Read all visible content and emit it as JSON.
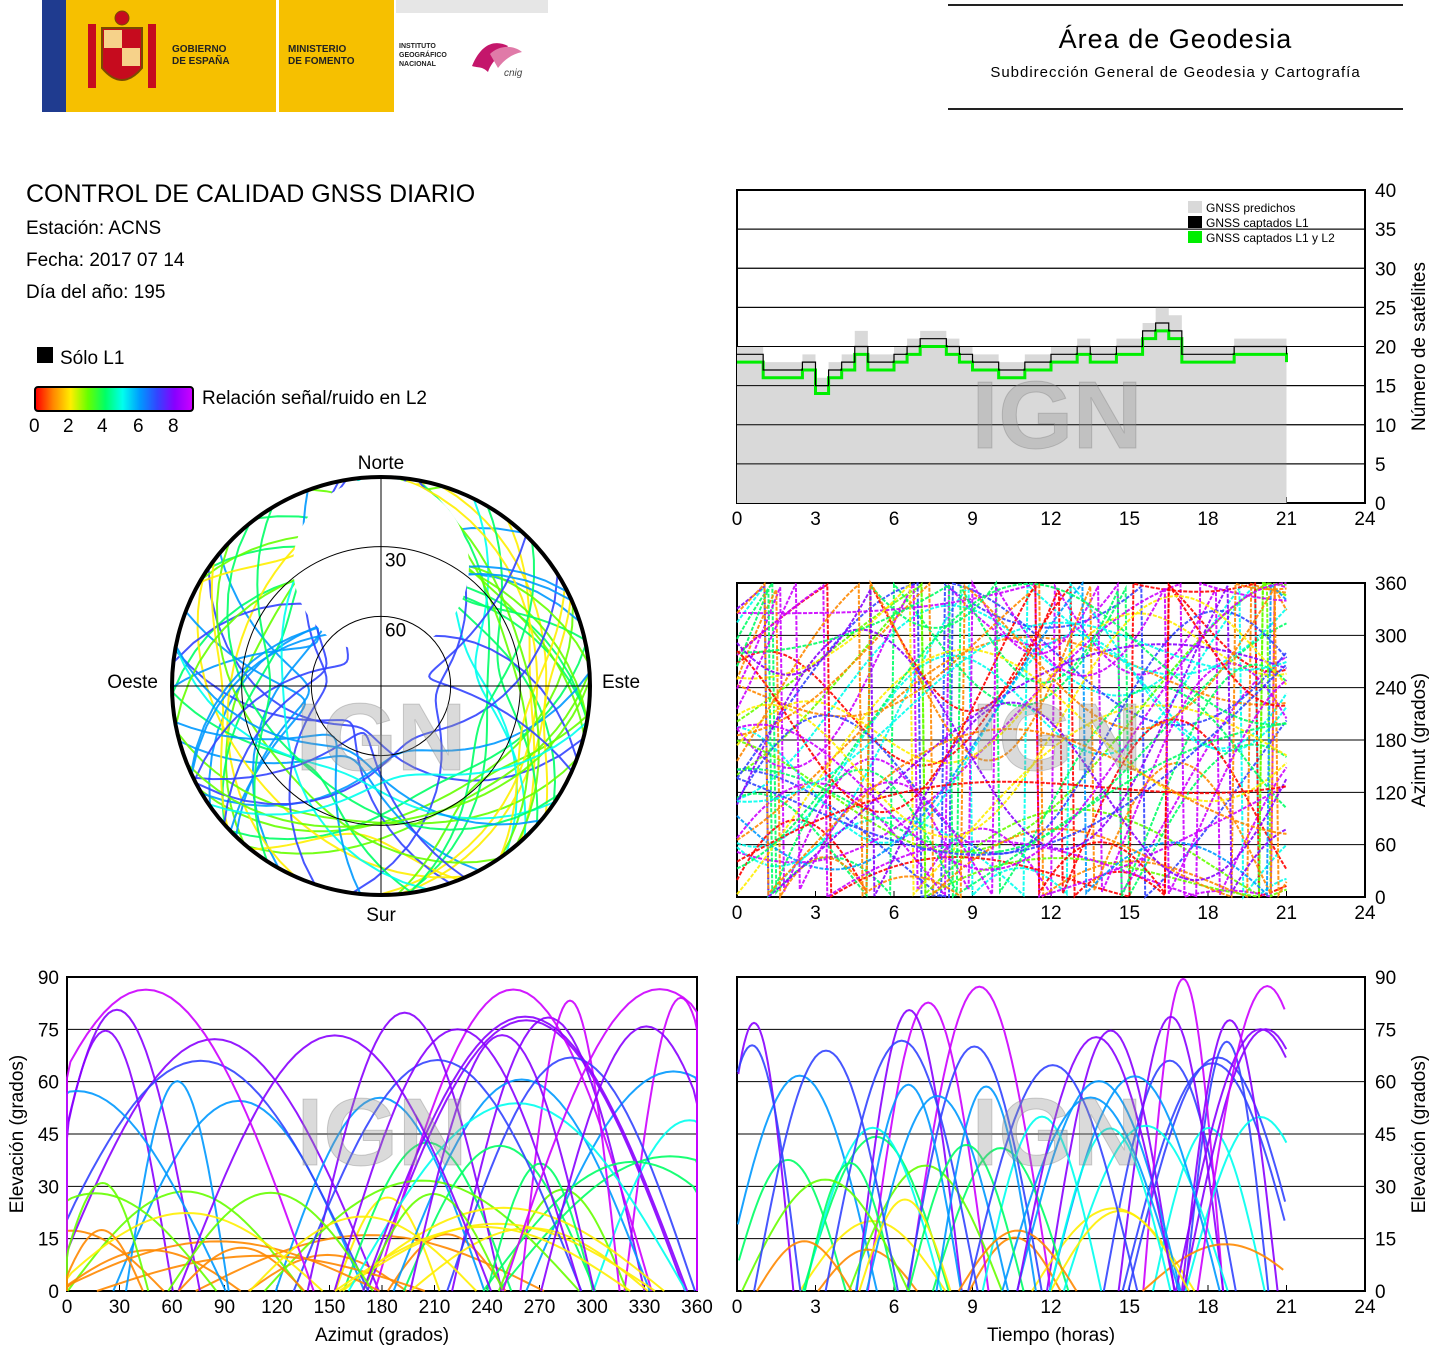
{
  "header": {
    "gov_line1": "GOBIERNO",
    "gov_line2": "DE ESPAÑA",
    "min_line1": "MINISTERIO",
    "min_line2": "DE FOMENTO",
    "ign_line1": "INSTITUTO",
    "ign_line2": "GEOGRÁFICO",
    "ign_line3": "NACIONAL",
    "cnig": "cnig",
    "area_title": "Área de Geodesia",
    "area_subtitle": "Subdirección General de Geodesia y Cartografía"
  },
  "report": {
    "title": "CONTROL DE CALIDAD GNSS DIARIO",
    "station": "Estación: ACNS",
    "date": "Fecha: 2017 07 14",
    "doy": "Día del año: 195"
  },
  "legend": {
    "l1_only": "Sólo L1",
    "snr_label": "Relación señal/ruido en L2",
    "snr_ticks": [
      "0",
      "2",
      "4",
      "6",
      "8"
    ],
    "snr_colors": [
      "#ff0000",
      "#ff8800",
      "#ffee00",
      "#66ff00",
      "#00ff66",
      "#00ffee",
      "#0099ff",
      "#3344ff",
      "#8800ff",
      "#cc00ff"
    ]
  },
  "watermark": "IGN",
  "chart_data": [
    {
      "id": "satellite-count",
      "type": "line",
      "xlim": [
        0,
        24
      ],
      "ylim": [
        0,
        40
      ],
      "x_ticks": [
        0,
        3,
        6,
        9,
        12,
        15,
        18,
        21,
        24
      ],
      "y_ticks": [
        0,
        5,
        10,
        15,
        20,
        25,
        30,
        35,
        40
      ],
      "ylabel": "Número de satélites",
      "grid": true,
      "legend_position": "top-right",
      "series": [
        {
          "name": "GNSS predichos",
          "color": "#d9d9d9",
          "x": [
            0,
            0.5,
            1,
            1.5,
            2,
            2.5,
            3,
            3.5,
            4,
            4.5,
            5,
            5.5,
            6,
            6.5,
            7,
            7.5,
            8,
            8.5,
            9,
            9.5,
            10,
            10.5,
            11,
            11.5,
            12,
            12.5,
            13,
            13.5,
            14,
            14.5,
            15,
            15.5,
            16,
            16.5,
            17,
            17.5,
            18,
            18.5,
            19,
            19.5,
            20,
            20.5,
            21
          ],
          "values": [
            20,
            20,
            18,
            18,
            18,
            19,
            16,
            18,
            19,
            22,
            19,
            19,
            20,
            21,
            22,
            22,
            21,
            20,
            19,
            19,
            18,
            18,
            19,
            19,
            20,
            20,
            21,
            20,
            20,
            21,
            21,
            23,
            25,
            24,
            20,
            20,
            20,
            20,
            21,
            21,
            21,
            21,
            20
          ]
        },
        {
          "name": "GNSS captados L1",
          "color": "#000000",
          "x": [
            0,
            0.5,
            1,
            1.5,
            2,
            2.5,
            3,
            3.5,
            4,
            4.5,
            5,
            5.5,
            6,
            6.5,
            7,
            7.5,
            8,
            8.5,
            9,
            9.5,
            10,
            10.5,
            11,
            11.5,
            12,
            12.5,
            13,
            13.5,
            14,
            14.5,
            15,
            15.5,
            16,
            16.5,
            17,
            17.5,
            18,
            18.5,
            19,
            19.5,
            20,
            20.5,
            21
          ],
          "values": [
            19,
            19,
            17,
            17,
            17,
            18,
            15,
            17,
            18,
            20,
            18,
            18,
            19,
            20,
            21,
            21,
            20,
            19,
            18,
            18,
            17,
            17,
            18,
            18,
            19,
            19,
            20,
            19,
            19,
            20,
            20,
            22,
            23,
            22,
            19,
            19,
            19,
            19,
            20,
            20,
            20,
            20,
            19
          ]
        },
        {
          "name": "GNSS captados L1 y L2",
          "color": "#00ee00",
          "x": [
            0,
            0.5,
            1,
            1.5,
            2,
            2.5,
            3,
            3.5,
            4,
            4.5,
            5,
            5.5,
            6,
            6.5,
            7,
            7.5,
            8,
            8.5,
            9,
            9.5,
            10,
            10.5,
            11,
            11.5,
            12,
            12.5,
            13,
            13.5,
            14,
            14.5,
            15,
            15.5,
            16,
            16.5,
            17,
            17.5,
            18,
            18.5,
            19,
            19.5,
            20,
            20.5,
            21
          ],
          "values": [
            18,
            18,
            16,
            16,
            16,
            17,
            14,
            16,
            17,
            19,
            17,
            17,
            18,
            19,
            20,
            20,
            19,
            18,
            17,
            17,
            16,
            16,
            17,
            17,
            18,
            18,
            19,
            18,
            18,
            19,
            19,
            21,
            22,
            21,
            18,
            18,
            18,
            18,
            19,
            19,
            19,
            19,
            18
          ]
        }
      ]
    },
    {
      "id": "skyplot",
      "type": "scatter",
      "rings": [
        "30",
        "60"
      ],
      "directions": {
        "north": "Norte",
        "east": "Este",
        "south": "Sur",
        "west": "Oeste"
      }
    },
    {
      "id": "azimuth-time",
      "type": "scatter",
      "xlim": [
        0,
        24
      ],
      "ylim": [
        0,
        360
      ],
      "x_ticks": [
        0,
        3,
        6,
        9,
        12,
        15,
        18,
        21,
        24
      ],
      "y_ticks": [
        0,
        60,
        120,
        180,
        240,
        300,
        360
      ],
      "ylabel": "Azimut (grados)",
      "grid": true
    },
    {
      "id": "elevation-azimuth",
      "type": "scatter",
      "xlim": [
        0,
        360
      ],
      "ylim": [
        0,
        90
      ],
      "x_ticks": [
        0,
        30,
        60,
        90,
        120,
        150,
        180,
        210,
        240,
        270,
        300,
        330,
        360
      ],
      "y_ticks": [
        0,
        15,
        30,
        45,
        60,
        75,
        90
      ],
      "xlabel": "Azimut (grados)",
      "ylabel": "Elevación (grados)",
      "grid": true
    },
    {
      "id": "elevation-time",
      "type": "scatter",
      "xlim": [
        0,
        24
      ],
      "ylim": [
        0,
        90
      ],
      "x_ticks": [
        0,
        3,
        6,
        9,
        12,
        15,
        18,
        21,
        24
      ],
      "y_ticks": [
        0,
        15,
        30,
        45,
        60,
        75,
        90
      ],
      "xlabel": "Tiempo (horas)",
      "ylabel": "Elevación (grados)",
      "grid": true
    }
  ]
}
